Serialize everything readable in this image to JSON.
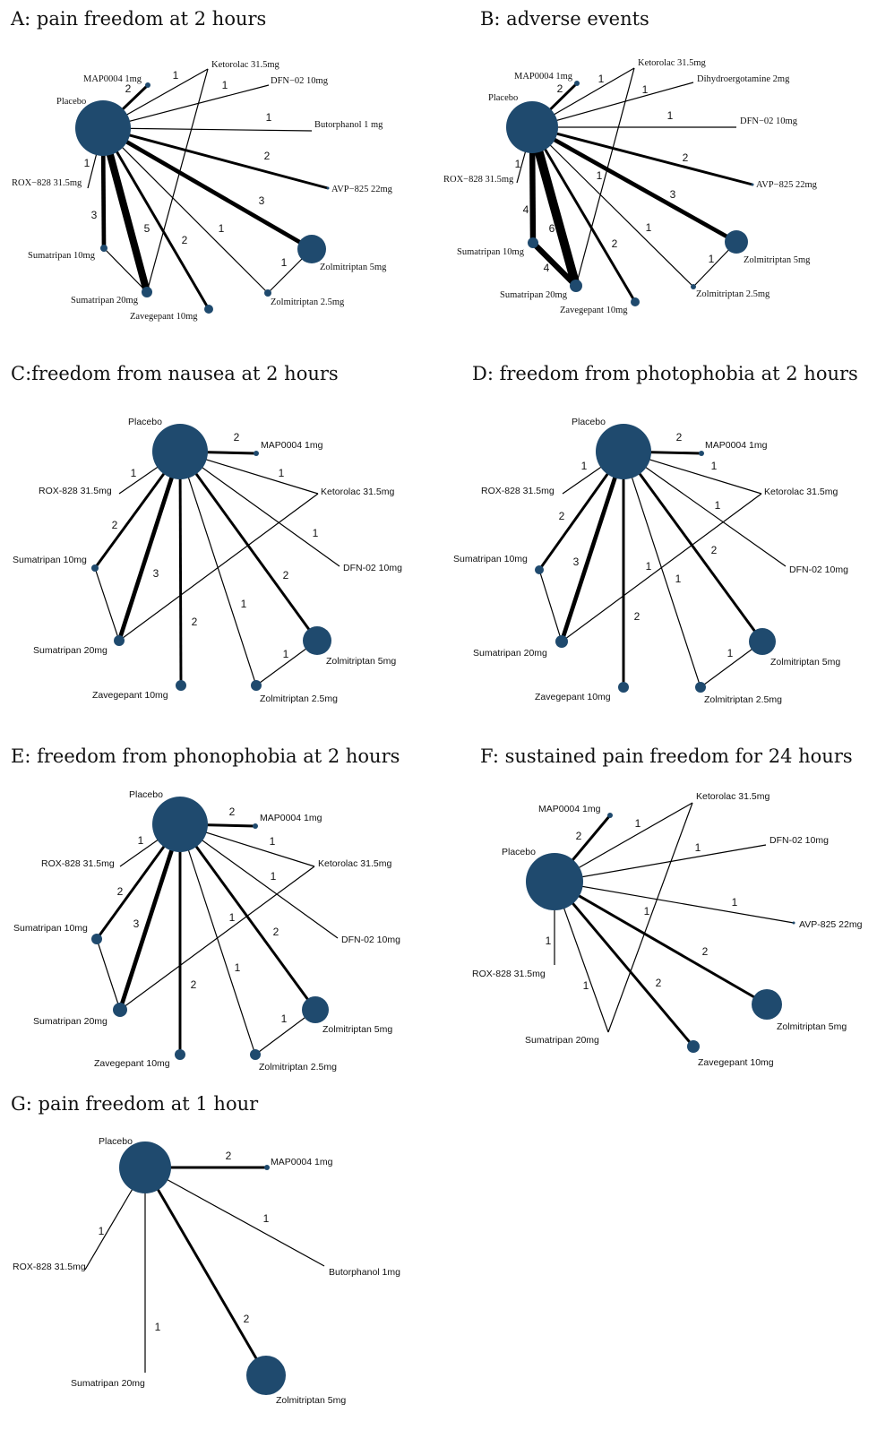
{
  "colors": {
    "node": "#1f4a6e",
    "edge": "#000000"
  },
  "panels": [
    {
      "id": "A",
      "title": "A: pain freedom at 2 hours",
      "nodes": [
        {
          "id": "Placebo",
          "label": "Placebo"
        },
        {
          "id": "MAP0004 1mg",
          "label": "MAP0004 1mg"
        },
        {
          "id": "Ketorolac 31.5mg",
          "label": "Ketorolac 31.5mg"
        },
        {
          "id": "DFN-02 10mg",
          "label": "DFN−02 10mg"
        },
        {
          "id": "Butorphanol 1 mg",
          "label": "Butorphanol 1 mg"
        },
        {
          "id": "AVP-825 22mg",
          "label": "AVP−825 22mg"
        },
        {
          "id": "Zolmitriptan 5mg",
          "label": "Zolmitriptan 5mg"
        },
        {
          "id": "Zolmitriptan 2.5mg",
          "label": "Zolmitriptan 2.5mg"
        },
        {
          "id": "Zavegepant 10mg",
          "label": "Zavegepant 10mg"
        },
        {
          "id": "Sumatripan 20mg",
          "label": "Sumatripan 20mg"
        },
        {
          "id": "Sumatripan 10mg",
          "label": "Sumatripan 10mg"
        },
        {
          "id": "ROX-828 31.5mg",
          "label": "ROX−828 31.5mg"
        }
      ],
      "edges": [
        {
          "from": "Placebo",
          "to": "MAP0004 1mg",
          "n": "2"
        },
        {
          "from": "Placebo",
          "to": "Ketorolac 31.5mg",
          "n": "1"
        },
        {
          "from": "Placebo",
          "to": "DFN-02 10mg",
          "n": "1"
        },
        {
          "from": "Placebo",
          "to": "Butorphanol 1 mg",
          "n": "1"
        },
        {
          "from": "Placebo",
          "to": "AVP-825 22mg",
          "n": "2"
        },
        {
          "from": "Placebo",
          "to": "Zolmitriptan 5mg",
          "n": "3"
        },
        {
          "from": "Placebo",
          "to": "Zolmitriptan 2.5mg",
          "n": "1"
        },
        {
          "from": "Placebo",
          "to": "Zavegepant 10mg",
          "n": "2"
        },
        {
          "from": "Placebo",
          "to": "Sumatripan 20mg",
          "n": "5"
        },
        {
          "from": "Placebo",
          "to": "Sumatripan 10mg",
          "n": "3"
        },
        {
          "from": "Placebo",
          "to": "ROX-828 31.5mg",
          "n": "1"
        },
        {
          "from": "Ketorolac 31.5mg",
          "to": "Sumatripan 20mg",
          "n": ""
        },
        {
          "from": "Sumatripan 10mg",
          "to": "Sumatripan 20mg",
          "n": ""
        },
        {
          "from": "Zolmitriptan 5mg",
          "to": "Zolmitriptan 2.5mg",
          "n": "1"
        }
      ]
    },
    {
      "id": "B",
      "title": "B: adverse events",
      "nodes": [
        {
          "id": "Placebo",
          "label": "Placebo"
        },
        {
          "id": "MAP0004 1mg",
          "label": "MAP0004 1mg"
        },
        {
          "id": "Ketorolac 31.5mg",
          "label": "Ketorolac 31.5mg"
        },
        {
          "id": "Dihydroergotamine 2mg",
          "label": "Dihydroergotamine 2mg"
        },
        {
          "id": "DFN-02 10mg",
          "label": "DFN−02 10mg"
        },
        {
          "id": "AVP-825 22mg",
          "label": "AVP−825 22mg"
        },
        {
          "id": "Zolmitriptan 5mg",
          "label": "Zolmitriptan 5mg"
        },
        {
          "id": "Zolmitriptan 2.5mg",
          "label": "Zolmitriptan 2.5mg"
        },
        {
          "id": "Zavegepant 10mg",
          "label": "Zavegepant 10mg"
        },
        {
          "id": "Sumatripan 20mg",
          "label": "Sumatripan 20mg"
        },
        {
          "id": "Sumatripan 10mg",
          "label": "Sumatripan 10mg"
        },
        {
          "id": "ROX-828 31.5mg",
          "label": "ROX−828 31.5mg"
        }
      ],
      "edges": [
        {
          "from": "Placebo",
          "to": "MAP0004 1mg",
          "n": "2"
        },
        {
          "from": "Placebo",
          "to": "Ketorolac 31.5mg",
          "n": "1"
        },
        {
          "from": "Placebo",
          "to": "Dihydroergotamine 2mg",
          "n": "1"
        },
        {
          "from": "Placebo",
          "to": "DFN-02 10mg",
          "n": "1"
        },
        {
          "from": "Placebo",
          "to": "AVP-825 22mg",
          "n": "2"
        },
        {
          "from": "Placebo",
          "to": "Zolmitriptan 5mg",
          "n": "3"
        },
        {
          "from": "Placebo",
          "to": "Zolmitriptan 2.5mg",
          "n": "1"
        },
        {
          "from": "Placebo",
          "to": "Zavegepant 10mg",
          "n": "2"
        },
        {
          "from": "Placebo",
          "to": "Sumatripan 20mg",
          "n": "6"
        },
        {
          "from": "Placebo",
          "to": "Sumatripan 10mg",
          "n": "4"
        },
        {
          "from": "Placebo",
          "to": "ROX-828 31.5mg",
          "n": "1"
        },
        {
          "from": "Ketorolac 31.5mg",
          "to": "Sumatripan 20mg",
          "n": "1"
        },
        {
          "from": "Sumatripan 10mg",
          "to": "Sumatripan 20mg",
          "n": "4"
        },
        {
          "from": "Zolmitriptan 5mg",
          "to": "Zolmitriptan 2.5mg",
          "n": "1"
        }
      ]
    },
    {
      "id": "C",
      "title": "C:freedom from nausea at 2 hours",
      "nodes": [
        {
          "id": "Placebo",
          "label": "Placebo"
        },
        {
          "id": "MAP0004 1mg",
          "label": "MAP0004 1mg"
        },
        {
          "id": "Ketorolac 31.5mg",
          "label": "Ketorolac 31.5mg"
        },
        {
          "id": "DFN-02 10mg",
          "label": "DFN-02 10mg"
        },
        {
          "id": "Zolmitriptan 5mg",
          "label": "Zolmitriptan 5mg"
        },
        {
          "id": "Zolmitriptan 2.5mg",
          "label": "Zolmitriptan 2.5mg"
        },
        {
          "id": "Zavegepant 10mg",
          "label": "Zavegepant 10mg"
        },
        {
          "id": "Sumatripan 20mg",
          "label": "Sumatripan 20mg"
        },
        {
          "id": "Sumatripan 10mg",
          "label": "Sumatripan 10mg"
        },
        {
          "id": "ROX-828 31.5mg",
          "label": "ROX-828 31.5mg"
        }
      ],
      "edges": [
        {
          "from": "Placebo",
          "to": "MAP0004 1mg",
          "n": "2"
        },
        {
          "from": "Placebo",
          "to": "Ketorolac 31.5mg",
          "n": "1"
        },
        {
          "from": "Placebo",
          "to": "DFN-02 10mg",
          "n": "1"
        },
        {
          "from": "Placebo",
          "to": "Zolmitriptan 5mg",
          "n": "2"
        },
        {
          "from": "Placebo",
          "to": "Zolmitriptan 2.5mg",
          "n": "1"
        },
        {
          "from": "Placebo",
          "to": "Zavegepant 10mg",
          "n": "2"
        },
        {
          "from": "Placebo",
          "to": "Sumatripan 20mg",
          "n": "3"
        },
        {
          "from": "Placebo",
          "to": "Sumatripan 10mg",
          "n": "2"
        },
        {
          "from": "Placebo",
          "to": "ROX-828 31.5mg",
          "n": "1"
        },
        {
          "from": "Ketorolac 31.5mg",
          "to": "Sumatripan 20mg",
          "n": ""
        },
        {
          "from": "Sumatripan 10mg",
          "to": "Sumatripan 20mg",
          "n": ""
        },
        {
          "from": "Zolmitriptan 5mg",
          "to": "Zolmitriptan 2.5mg",
          "n": "1"
        }
      ]
    },
    {
      "id": "D",
      "title": "D: freedom from photophobia at 2 hours",
      "nodes": [
        {
          "id": "Placebo",
          "label": "Placebo"
        },
        {
          "id": "MAP0004 1mg",
          "label": "MAP0004 1mg"
        },
        {
          "id": "Ketorolac 31.5mg",
          "label": "Ketorolac 31.5mg"
        },
        {
          "id": "DFN-02 10mg",
          "label": "DFN-02 10mg"
        },
        {
          "id": "Zolmitriptan 5mg",
          "label": "Zolmitriptan 5mg"
        },
        {
          "id": "Zolmitriptan 2.5mg",
          "label": "Zolmitriptan 2.5mg"
        },
        {
          "id": "Zavegepant 10mg",
          "label": "Zavegepant 10mg"
        },
        {
          "id": "Sumatripan 20mg",
          "label": "Sumatripan 20mg"
        },
        {
          "id": "Sumatripan 10mg",
          "label": "Sumatripan 10mg"
        },
        {
          "id": "ROX-828 31.5mg",
          "label": "ROX-828 31.5mg"
        }
      ],
      "edges": [
        {
          "from": "Placebo",
          "to": "MAP0004 1mg",
          "n": "2"
        },
        {
          "from": "Placebo",
          "to": "Ketorolac 31.5mg",
          "n": "1"
        },
        {
          "from": "Placebo",
          "to": "DFN-02 10mg",
          "n": "1"
        },
        {
          "from": "Placebo",
          "to": "Zolmitriptan 5mg",
          "n": "2"
        },
        {
          "from": "Placebo",
          "to": "Zolmitriptan 2.5mg",
          "n": "1"
        },
        {
          "from": "Placebo",
          "to": "Zavegepant 10mg",
          "n": "2"
        },
        {
          "from": "Placebo",
          "to": "Sumatripan 20mg",
          "n": "3"
        },
        {
          "from": "Placebo",
          "to": "Sumatripan 10mg",
          "n": "2"
        },
        {
          "from": "Placebo",
          "to": "ROX-828 31.5mg",
          "n": "1"
        },
        {
          "from": "Ketorolac 31.5mg",
          "to": "Sumatripan 20mg",
          "n": "1"
        },
        {
          "from": "Sumatripan 10mg",
          "to": "Sumatripan 20mg",
          "n": ""
        },
        {
          "from": "Zolmitriptan 5mg",
          "to": "Zolmitriptan 2.5mg",
          "n": "1"
        }
      ]
    },
    {
      "id": "E",
      "title": "E: freedom from phonophobia at 2 hours",
      "nodes": [
        {
          "id": "Placebo",
          "label": "Placebo"
        },
        {
          "id": "MAP0004 1mg",
          "label": "MAP0004 1mg"
        },
        {
          "id": "Ketorolac 31.5mg",
          "label": "Ketorolac 31.5mg"
        },
        {
          "id": "DFN-02 10mg",
          "label": "DFN-02 10mg"
        },
        {
          "id": "Zolmitriptan 5mg",
          "label": "Zolmitriptan 5mg"
        },
        {
          "id": "Zolmitriptan 2.5mg",
          "label": "Zolmitriptan 2.5mg"
        },
        {
          "id": "Zavegepant 10mg",
          "label": "Zavegepant 10mg"
        },
        {
          "id": "Sumatripan 20mg",
          "label": "Sumatripan 20mg"
        },
        {
          "id": "Sumatripan 10mg",
          "label": "Sumatripan 10mg"
        },
        {
          "id": "ROX-828 31.5mg",
          "label": "ROX-828 31.5mg"
        }
      ],
      "edges": [
        {
          "from": "Placebo",
          "to": "MAP0004 1mg",
          "n": "2"
        },
        {
          "from": "Placebo",
          "to": "Ketorolac 31.5mg",
          "n": "1"
        },
        {
          "from": "Placebo",
          "to": "DFN-02 10mg",
          "n": "1"
        },
        {
          "from": "Placebo",
          "to": "Zolmitriptan 5mg",
          "n": "2"
        },
        {
          "from": "Placebo",
          "to": "Zolmitriptan 2.5mg",
          "n": "1"
        },
        {
          "from": "Placebo",
          "to": "Zavegepant 10mg",
          "n": "2"
        },
        {
          "from": "Placebo",
          "to": "Sumatripan 20mg",
          "n": "3"
        },
        {
          "from": "Placebo",
          "to": "Sumatripan 10mg",
          "n": "2"
        },
        {
          "from": "Placebo",
          "to": "ROX-828 31.5mg",
          "n": "1"
        },
        {
          "from": "Ketorolac 31.5mg",
          "to": "Sumatripan 20mg",
          "n": "1"
        },
        {
          "from": "Sumatripan 10mg",
          "to": "Sumatripan 20mg",
          "n": ""
        },
        {
          "from": "Zolmitriptan 5mg",
          "to": "Zolmitriptan 2.5mg",
          "n": "1"
        }
      ]
    },
    {
      "id": "F",
      "title": "F: sustained pain freedom for 24 hours",
      "nodes": [
        {
          "id": "Placebo",
          "label": "Placebo"
        },
        {
          "id": "MAP0004 1mg",
          "label": "MAP0004 1mg"
        },
        {
          "id": "Ketorolac 31.5mg",
          "label": "Ketorolac 31.5mg"
        },
        {
          "id": "DFN-02 10mg",
          "label": "DFN-02 10mg"
        },
        {
          "id": "AVP-825 22mg",
          "label": "AVP-825 22mg"
        },
        {
          "id": "Zolmitriptan 5mg",
          "label": "Zolmitriptan 5mg"
        },
        {
          "id": "Zavegepant 10mg",
          "label": "Zavegepant 10mg"
        },
        {
          "id": "Sumatripan 20mg",
          "label": "Sumatripan 20mg"
        },
        {
          "id": "ROX-828 31.5mg",
          "label": "ROX-828 31.5mg"
        }
      ],
      "edges": [
        {
          "from": "Placebo",
          "to": "MAP0004 1mg",
          "n": "2"
        },
        {
          "from": "Placebo",
          "to": "Ketorolac 31.5mg",
          "n": "1"
        },
        {
          "from": "Placebo",
          "to": "DFN-02 10mg",
          "n": "1"
        },
        {
          "from": "Placebo",
          "to": "AVP-825 22mg",
          "n": "1"
        },
        {
          "from": "Placebo",
          "to": "Zolmitriptan 5mg",
          "n": "2"
        },
        {
          "from": "Placebo",
          "to": "Zavegepant 10mg",
          "n": "2"
        },
        {
          "from": "Placebo",
          "to": "Sumatripan 20mg",
          "n": "1"
        },
        {
          "from": "Placebo",
          "to": "ROX-828 31.5mg",
          "n": "1"
        },
        {
          "from": "Ketorolac 31.5mg",
          "to": "Sumatripan 20mg",
          "n": "1"
        }
      ]
    },
    {
      "id": "G",
      "title": "G: pain freedom at 1 hour",
      "nodes": [
        {
          "id": "Placebo",
          "label": "Placebo"
        },
        {
          "id": "MAP0004 1mg",
          "label": "MAP0004 1mg"
        },
        {
          "id": "Butorphanol 1mg",
          "label": "Butorphanol 1mg"
        },
        {
          "id": "Zolmitriptan 5mg",
          "label": "Zolmitriptan 5mg"
        },
        {
          "id": "Sumatripan 20mg",
          "label": "Sumatripan 20mg"
        },
        {
          "id": "ROX-828 31.5mg",
          "label": "ROX-828 31.5mg"
        }
      ],
      "edges": [
        {
          "from": "Placebo",
          "to": "MAP0004 1mg",
          "n": "2"
        },
        {
          "from": "Placebo",
          "to": "Butorphanol 1mg",
          "n": "1"
        },
        {
          "from": "Placebo",
          "to": "Zolmitriptan 5mg",
          "n": "2"
        },
        {
          "from": "Placebo",
          "to": "Sumatripan 20mg",
          "n": "1"
        },
        {
          "from": "Placebo",
          "to": "ROX-828 31.5mg",
          "n": "1"
        }
      ]
    }
  ]
}
